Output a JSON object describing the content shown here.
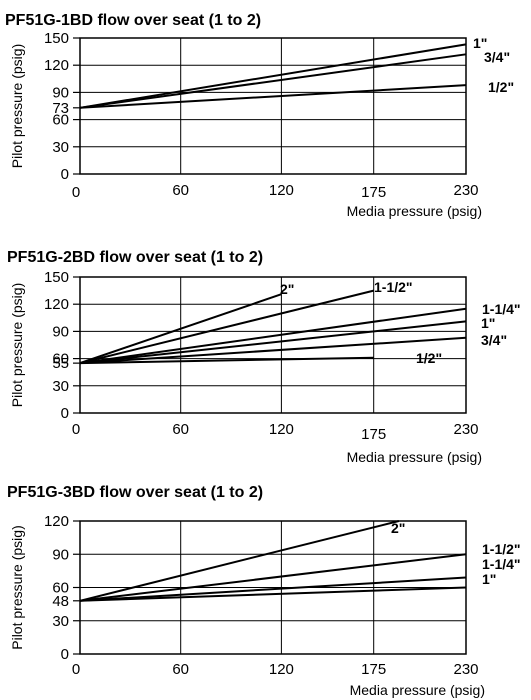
{
  "chart_data": [
    {
      "type": "line",
      "title": "PF51G-1BD flow over seat (1 to 2)",
      "xlabel": "Media pressure (psig)",
      "ylabel": "Pilot pressure (psig)",
      "xlim": [
        0,
        230
      ],
      "ylim": [
        0,
        150
      ],
      "x_ticks": [
        0,
        60,
        120,
        175,
        230
      ],
      "y_ticks": [
        0,
        30,
        60,
        73,
        90,
        120,
        150
      ],
      "grid": true,
      "series": [
        {
          "name": "1\"",
          "x": [
            0,
            230
          ],
          "y": [
            73,
            143
          ]
        },
        {
          "name": "3/4\"",
          "x": [
            0,
            230
          ],
          "y": [
            73,
            132
          ]
        },
        {
          "name": "1/2\"",
          "x": [
            0,
            230
          ],
          "y": [
            73,
            98
          ]
        }
      ]
    },
    {
      "type": "line",
      "title": "PF51G-2BD flow over seat (1 to 2)",
      "xlabel": "Media pressure (psig)",
      "ylabel": "Pilot pressure (psig)",
      "xlim": [
        0,
        230
      ],
      "ylim": [
        0,
        150
      ],
      "x_ticks": [
        0,
        60,
        120,
        175,
        230
      ],
      "y_ticks": [
        0,
        30,
        55,
        60,
        90,
        120,
        150
      ],
      "grid": true,
      "series": [
        {
          "name": "2\"",
          "x": [
            0,
            120
          ],
          "y": [
            55,
            131
          ]
        },
        {
          "name": "1-1/2\"",
          "x": [
            0,
            175
          ],
          "y": [
            55,
            135
          ]
        },
        {
          "name": "1-1/4\"",
          "x": [
            0,
            230
          ],
          "y": [
            55,
            115
          ]
        },
        {
          "name": "1\"",
          "x": [
            0,
            230
          ],
          "y": [
            55,
            101
          ]
        },
        {
          "name": "3/4\"",
          "x": [
            0,
            230
          ],
          "y": [
            55,
            83
          ]
        },
        {
          "name": "1/2\"",
          "x": [
            0,
            175
          ],
          "y": [
            55,
            61
          ]
        }
      ]
    },
    {
      "type": "line",
      "title": "PF51G-3BD flow over seat (1 to 2)",
      "xlabel": "Media pressure (psig)",
      "ylabel": "Pilot pressure (psig)",
      "xlim": [
        0,
        230
      ],
      "ylim": [
        0,
        120
      ],
      "x_ticks": [
        0,
        60,
        120,
        175,
        230
      ],
      "y_ticks": [
        0,
        30,
        48,
        60,
        90,
        120
      ],
      "grid": true,
      "series": [
        {
          "name": "2\"",
          "x": [
            0,
            190
          ],
          "y": [
            48,
            120
          ]
        },
        {
          "name": "1-1/2\"",
          "x": [
            0,
            230
          ],
          "y": [
            48,
            90
          ]
        },
        {
          "name": "1-1/4\"",
          "x": [
            0,
            230
          ],
          "y": [
            48,
            69
          ]
        },
        {
          "name": "1\"",
          "x": [
            0,
            230
          ],
          "y": [
            48,
            60
          ]
        }
      ]
    }
  ]
}
